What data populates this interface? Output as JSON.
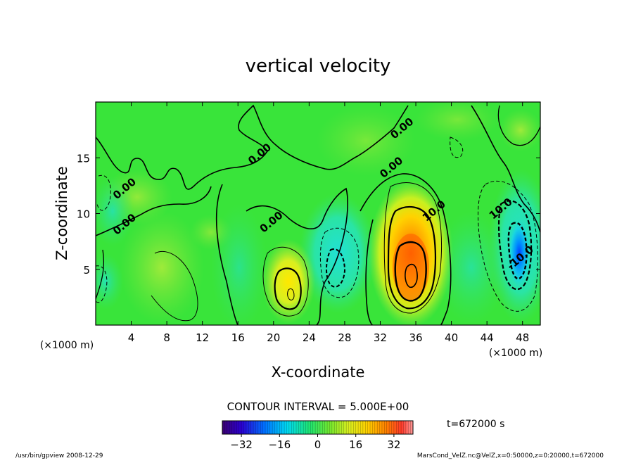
{
  "chart_data": {
    "type": "heatmap",
    "title": "vertical velocity",
    "xlabel": "X-coordinate",
    "ylabel": "Z-coordinate",
    "x_unit": "(×1000 m)",
    "y_unit": "(×1000 m)",
    "xlim": [
      0,
      50
    ],
    "ylim": [
      0,
      20
    ],
    "x_ticks": [
      4,
      8,
      12,
      16,
      20,
      24,
      28,
      32,
      36,
      40,
      44,
      48
    ],
    "y_ticks": [
      5,
      10,
      15
    ],
    "contour_interval_text": "CONTOUR INTERVAL = 5.000E+00",
    "time_label": "t=672000 s",
    "colorbar": {
      "min": -40,
      "max": 40,
      "ticks": [
        -32,
        -16,
        0,
        16,
        32
      ]
    },
    "contour_labels": [
      {
        "text": "0.00",
        "x": 3.5,
        "y": 12.0
      },
      {
        "text": "0.00",
        "x": 3.5,
        "y": 8.8
      },
      {
        "text": "0.00",
        "x": 18.7,
        "y": 15.1
      },
      {
        "text": "0.00",
        "x": 20.0,
        "y": 9.0
      },
      {
        "text": "0.00",
        "x": 33.5,
        "y": 13.9
      },
      {
        "text": "0.00",
        "x": 34.7,
        "y": 17.4
      },
      {
        "text": "10.0",
        "x": 38.3,
        "y": 10.0
      },
      {
        "text": "10.0",
        "x": 45.8,
        "y": 10.2
      },
      {
        "text": "-10.0",
        "x": 48.0,
        "y": 5.8
      }
    ],
    "features": [
      {
        "kind": "updraft",
        "x": 35.2,
        "z": 5.0,
        "peak": 34
      },
      {
        "kind": "updraft",
        "x": 21.8,
        "z": 3.2,
        "peak": 17
      },
      {
        "kind": "downdraft",
        "x": 47.6,
        "z": 7.0,
        "peak": -26
      },
      {
        "kind": "downdraft",
        "x": 27.5,
        "z": 6.0,
        "peak": -10
      }
    ]
  },
  "footer": {
    "left": "/usr/bin/gpview   2008-12-29",
    "right": "MarsCond_VelZ.nc@VelZ,x=0:50000,z=0:20000,t=672000"
  },
  "colors": {
    "background": "#39e43a",
    "max": "#ff8f8f",
    "min": "#3a0070"
  }
}
